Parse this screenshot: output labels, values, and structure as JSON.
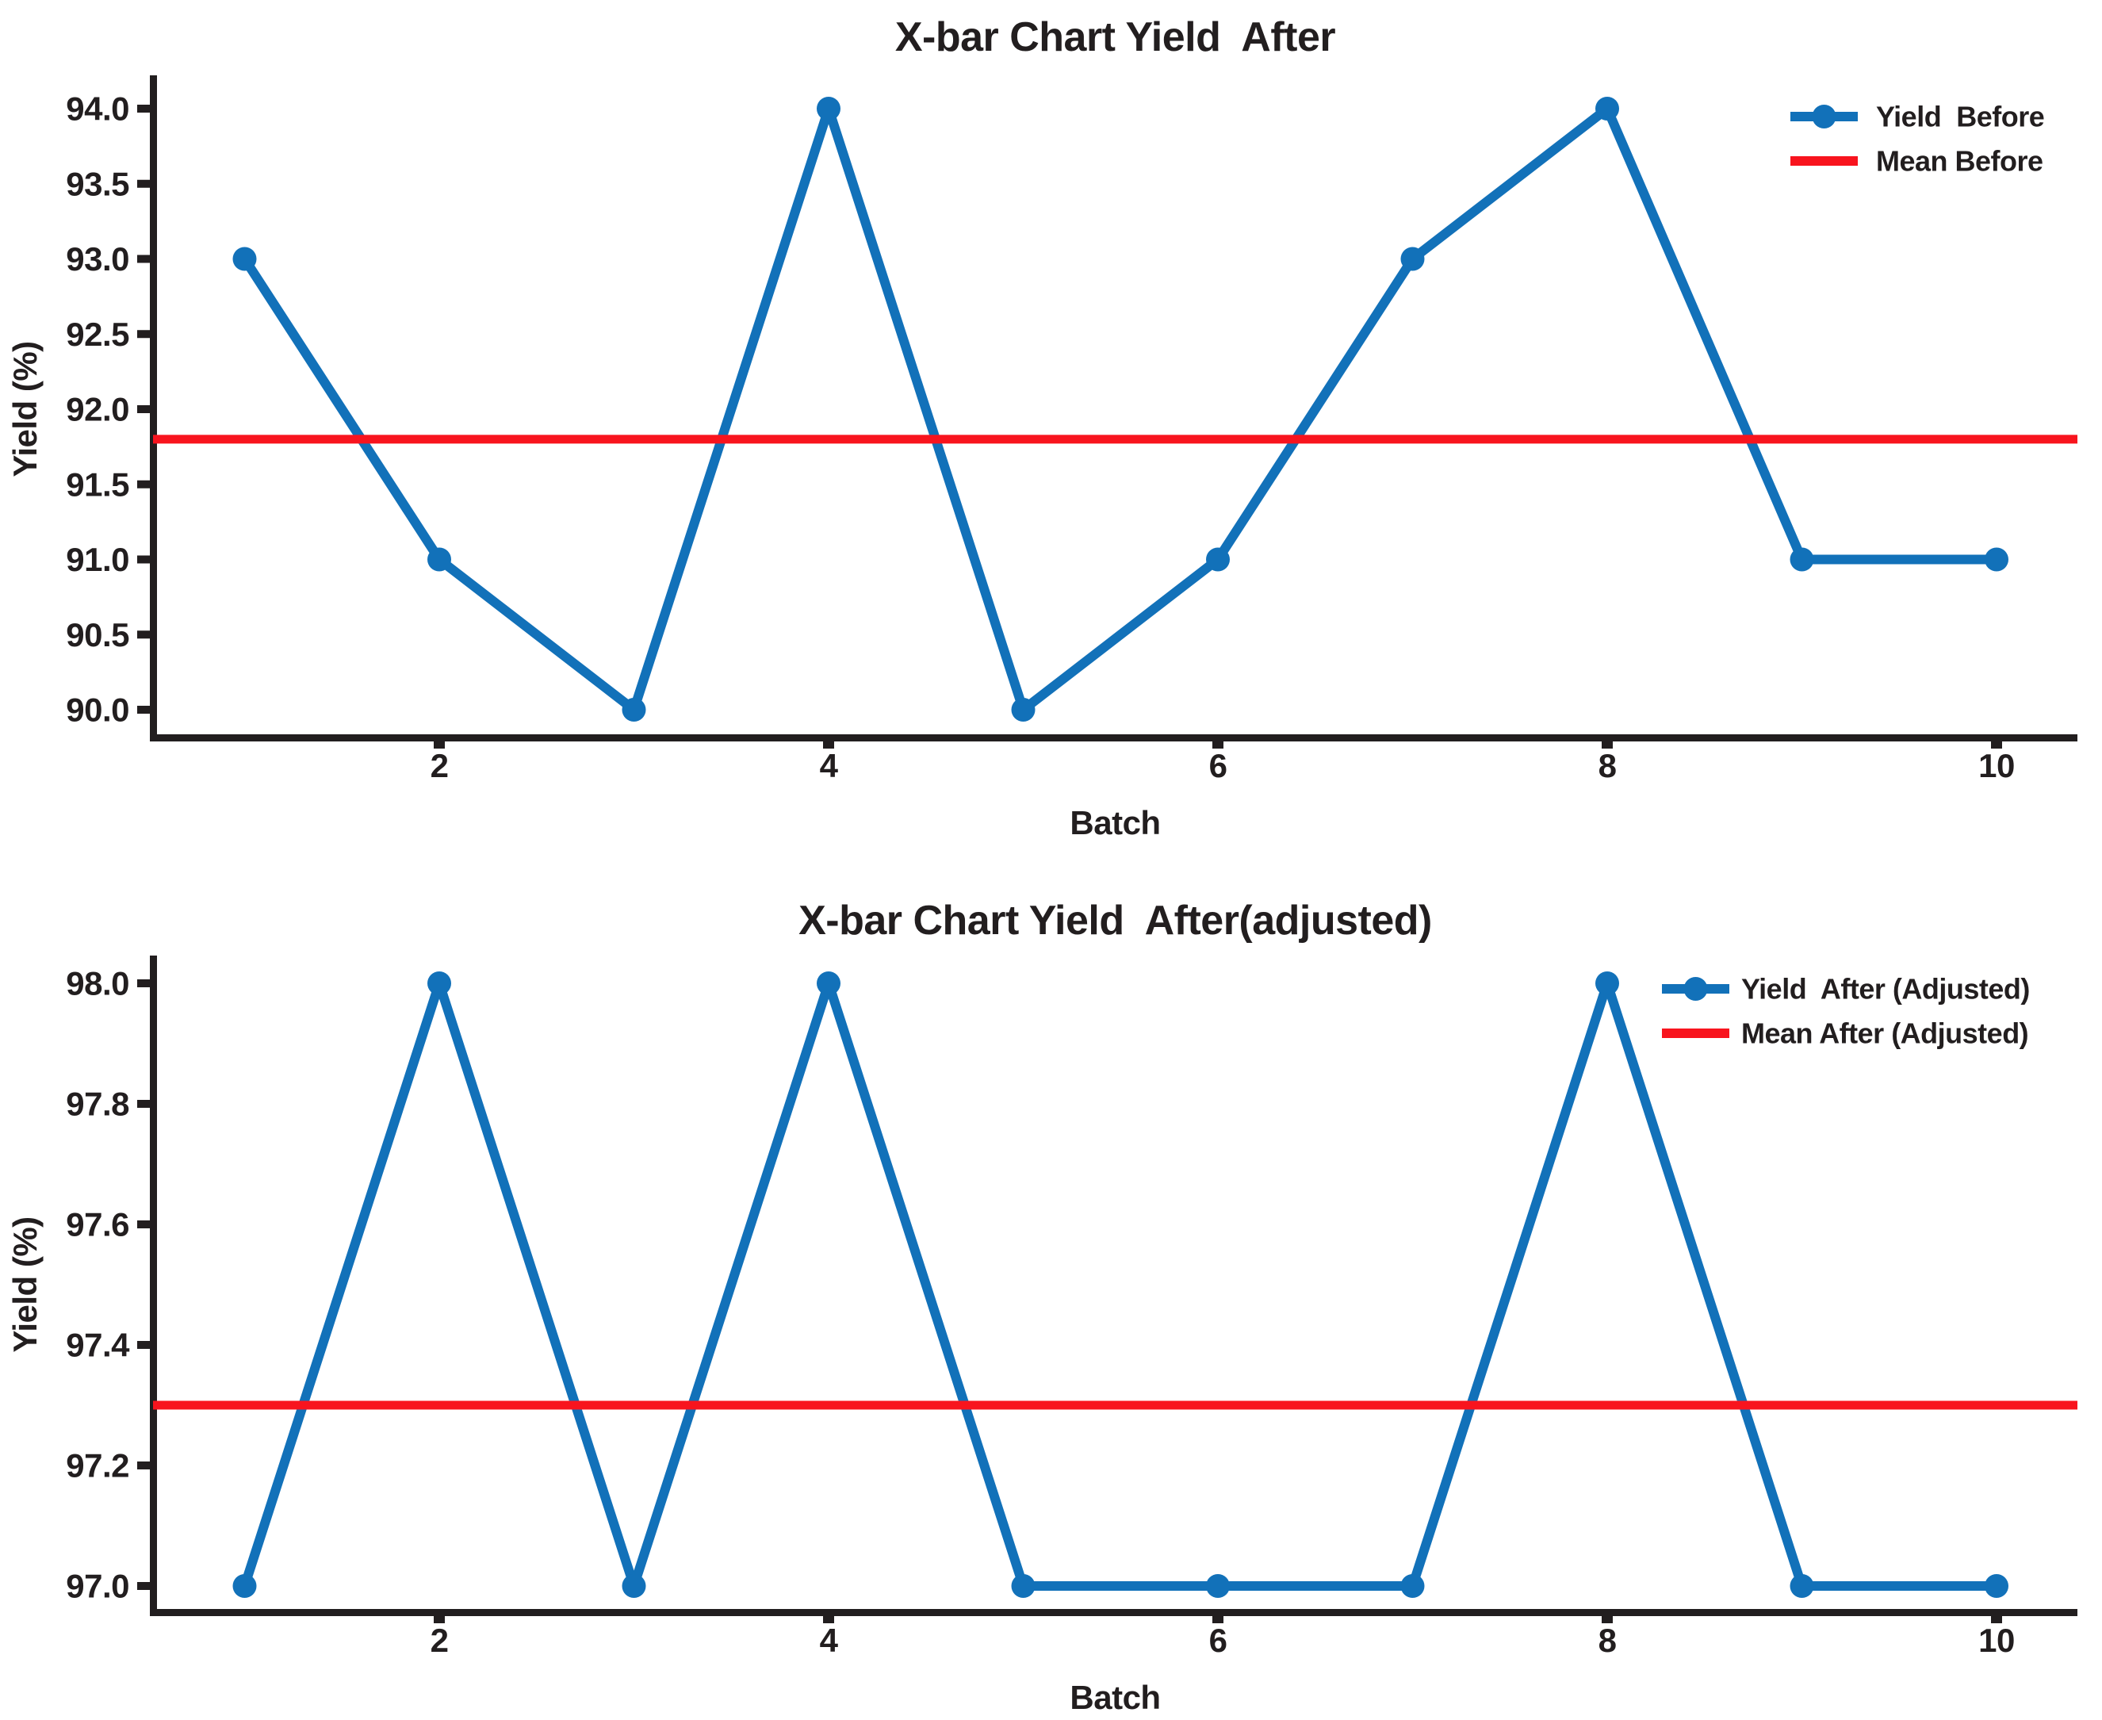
{
  "figure": {
    "background": "#ffffff",
    "axis_color": "#221e1f",
    "line_color": "#1271b9",
    "mean_color": "#f8141e"
  },
  "chart_data": [
    {
      "id": "before",
      "type": "line",
      "title": "X-bar Chart Yield  After",
      "xlabel": "Batch",
      "ylabel": "Yield (%)",
      "x": [
        1,
        2,
        3,
        4,
        5,
        6,
        7,
        8,
        9,
        10
      ],
      "series": [
        {
          "name": "Yield  Before",
          "type": "line",
          "marker": "circle",
          "color": "#1271b9",
          "values": [
            93.0,
            91.0,
            90.0,
            94.0,
            90.0,
            91.0,
            93.0,
            94.0,
            91.0,
            91.0
          ]
        },
        {
          "name": "Mean Before",
          "type": "hline",
          "color": "#f8141e",
          "value": 91.8
        }
      ],
      "yticks": [
        "90.0",
        "90.5",
        "91.0",
        "91.5",
        "92.0",
        "92.5",
        "93.0",
        "93.5",
        "94.0"
      ],
      "xticks": [
        2,
        4,
        6,
        8,
        10
      ],
      "ylim": [
        89.8,
        94.25
      ],
      "grid": false,
      "legend": {
        "position": "upper right",
        "frame": false,
        "entries": [
          "Yield  Before",
          "Mean Before"
        ]
      }
    },
    {
      "id": "after",
      "type": "line",
      "title": "X-bar Chart Yield  After(adjusted)",
      "xlabel": "Batch",
      "ylabel": "Yield (%)",
      "x": [
        1,
        2,
        3,
        4,
        5,
        6,
        7,
        8,
        9,
        10
      ],
      "series": [
        {
          "name": "Yield  After (Adjusted)",
          "type": "line",
          "marker": "circle",
          "color": "#1271b9",
          "values": [
            97.0,
            98.0,
            97.0,
            98.0,
            97.0,
            97.0,
            97.0,
            98.0,
            97.0,
            97.0
          ]
        },
        {
          "name": "Mean After (Adjusted)",
          "type": "hline",
          "color": "#f8141e",
          "value": 97.3
        }
      ],
      "yticks": [
        "97.0",
        "97.2",
        "97.4",
        "97.6",
        "97.8",
        "98.0"
      ],
      "xticks": [
        2,
        4,
        6,
        8,
        10
      ],
      "ylim": [
        96.95,
        98.06
      ],
      "grid": false,
      "legend": {
        "position": "upper right",
        "frame": false,
        "entries": [
          "Yield  After (Adjusted)",
          "Mean After (Adjusted)"
        ]
      }
    }
  ]
}
